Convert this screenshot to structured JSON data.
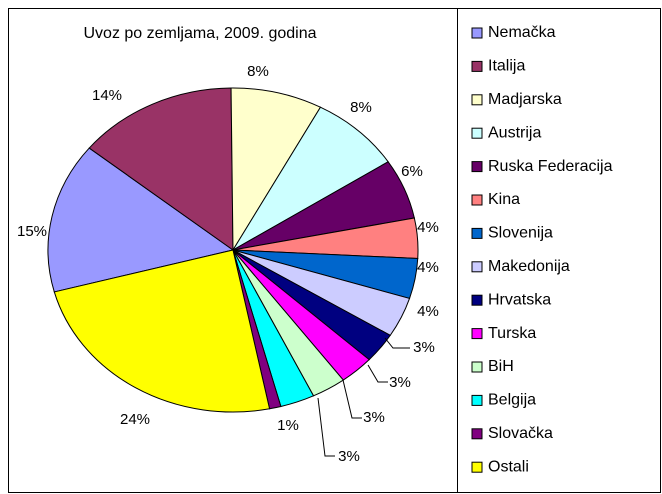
{
  "chart_data": {
    "type": "pie",
    "title": "Uvoz po zemljama, 2009. godina",
    "categories": [
      "Nemačka",
      "Italija",
      "Madjarska",
      "Austrija",
      "Ruska Federacija",
      "Kina",
      "Slovenija",
      "Makedonija",
      "Hrvatska",
      "Turska",
      "BiH",
      "Belgija",
      "Slovačka",
      "Ostali"
    ],
    "values": [
      15,
      14,
      8,
      8,
      6,
      4,
      4,
      4,
      3,
      3,
      3,
      3,
      1,
      24
    ],
    "value_labels": [
      "15%",
      "14%",
      "8%",
      "8%",
      "6%",
      "4%",
      "4%",
      "4%",
      "3%",
      "3%",
      "3%",
      "3%",
      "1%",
      "24%"
    ],
    "colors": [
      "#9999ff",
      "#993366",
      "#ffffcc",
      "#ccffff",
      "#660066",
      "#ff8080",
      "#0066cc",
      "#ccccff",
      "#000080",
      "#ff00ff",
      "#ccffcc",
      "#00ffff",
      "#800080",
      "#ffff00"
    ],
    "legend": "right"
  }
}
